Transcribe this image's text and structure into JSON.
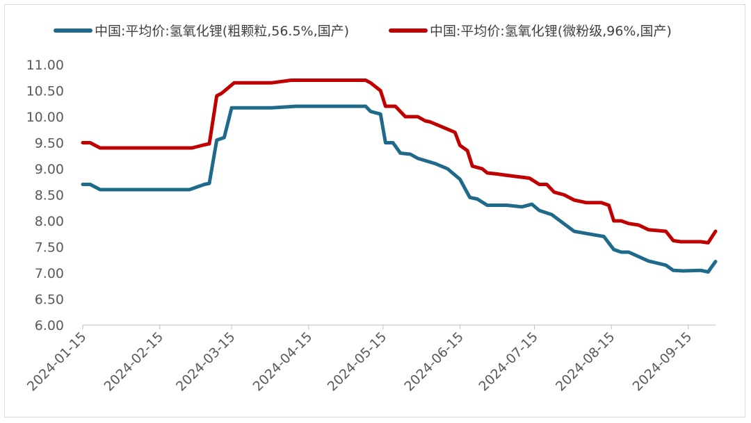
{
  "chart_data": {
    "type": "line",
    "xlabel": "",
    "ylabel": "",
    "ylim": [
      6.0,
      11.0
    ],
    "y_ticks": [
      "6.00",
      "6.50",
      "7.00",
      "7.50",
      "8.00",
      "8.50",
      "9.00",
      "9.50",
      "10.00",
      "10.50",
      "11.00"
    ],
    "x_ticks": [
      "2024-01-15",
      "2024-02-15",
      "2024-03-15",
      "2024-04-15",
      "2024-05-15",
      "2024-06-15",
      "2024-07-15",
      "2024-08-15",
      "2024-09-15"
    ],
    "x_range": [
      "2024-01-15",
      "2024-09-26"
    ],
    "grid": false,
    "legend_position": "top",
    "series": [
      {
        "name": "中国:平均价:氢氧化锂(粗颗粒,56.5%,国产)",
        "color": "#1f6a8a",
        "points": [
          [
            "2024-01-15",
            8.7
          ],
          [
            "2024-01-18",
            8.7
          ],
          [
            "2024-01-22",
            8.6
          ],
          [
            "2024-02-27",
            8.6
          ],
          [
            "2024-03-04",
            8.7
          ],
          [
            "2024-03-06",
            8.72
          ],
          [
            "2024-03-09",
            9.55
          ],
          [
            "2024-03-12",
            9.6
          ],
          [
            "2024-03-15",
            10.17
          ],
          [
            "2024-03-31",
            10.17
          ],
          [
            "2024-04-10",
            10.2
          ],
          [
            "2024-05-08",
            10.2
          ],
          [
            "2024-05-10",
            10.1
          ],
          [
            "2024-05-14",
            10.05
          ],
          [
            "2024-05-16",
            9.5
          ],
          [
            "2024-05-19",
            9.5
          ],
          [
            "2024-05-22",
            9.3
          ],
          [
            "2024-05-26",
            9.28
          ],
          [
            "2024-05-29",
            9.2
          ],
          [
            "2024-06-05",
            9.1
          ],
          [
            "2024-06-10",
            9.0
          ],
          [
            "2024-06-15",
            8.8
          ],
          [
            "2024-06-19",
            8.45
          ],
          [
            "2024-06-22",
            8.42
          ],
          [
            "2024-06-26",
            8.3
          ],
          [
            "2024-07-04",
            8.3
          ],
          [
            "2024-07-10",
            8.27
          ],
          [
            "2024-07-14",
            8.32
          ],
          [
            "2024-07-17",
            8.2
          ],
          [
            "2024-07-22",
            8.12
          ],
          [
            "2024-07-31",
            7.8
          ],
          [
            "2024-08-06",
            7.75
          ],
          [
            "2024-08-12",
            7.7
          ],
          [
            "2024-08-16",
            7.45
          ],
          [
            "2024-08-19",
            7.4
          ],
          [
            "2024-08-22",
            7.4
          ],
          [
            "2024-08-30",
            7.23
          ],
          [
            "2024-09-06",
            7.15
          ],
          [
            "2024-09-09",
            7.05
          ],
          [
            "2024-09-13",
            7.04
          ],
          [
            "2024-09-20",
            7.05
          ],
          [
            "2024-09-23",
            7.02
          ],
          [
            "2024-09-26",
            7.22
          ]
        ]
      },
      {
        "name": "中国:平均价:氢氧化锂(微粉级,96%,国产)",
        "color": "#c00000",
        "points": [
          [
            "2024-01-15",
            9.5
          ],
          [
            "2024-01-18",
            9.5
          ],
          [
            "2024-01-22",
            9.4
          ],
          [
            "2024-02-28",
            9.4
          ],
          [
            "2024-03-04",
            9.46
          ],
          [
            "2024-03-06",
            9.48
          ],
          [
            "2024-03-09",
            10.4
          ],
          [
            "2024-03-11",
            10.45
          ],
          [
            "2024-03-16",
            10.65
          ],
          [
            "2024-03-31",
            10.65
          ],
          [
            "2024-04-08",
            10.7
          ],
          [
            "2024-05-08",
            10.7
          ],
          [
            "2024-05-10",
            10.65
          ],
          [
            "2024-05-14",
            10.5
          ],
          [
            "2024-05-16",
            10.2
          ],
          [
            "2024-05-20",
            10.2
          ],
          [
            "2024-05-24",
            10.0
          ],
          [
            "2024-05-29",
            10.0
          ],
          [
            "2024-06-01",
            9.92
          ],
          [
            "2024-06-03",
            9.9
          ],
          [
            "2024-06-13",
            9.7
          ],
          [
            "2024-06-15",
            9.45
          ],
          [
            "2024-06-18",
            9.35
          ],
          [
            "2024-06-20",
            9.05
          ],
          [
            "2024-06-24",
            9.0
          ],
          [
            "2024-06-26",
            8.92
          ],
          [
            "2024-06-30",
            8.9
          ],
          [
            "2024-07-03",
            8.88
          ],
          [
            "2024-07-13",
            8.82
          ],
          [
            "2024-07-17",
            8.7
          ],
          [
            "2024-07-20",
            8.7
          ],
          [
            "2024-07-23",
            8.55
          ],
          [
            "2024-07-27",
            8.5
          ],
          [
            "2024-07-31",
            8.4
          ],
          [
            "2024-08-05",
            8.35
          ],
          [
            "2024-08-11",
            8.35
          ],
          [
            "2024-08-14",
            8.3
          ],
          [
            "2024-08-16",
            8.0
          ],
          [
            "2024-08-19",
            8.0
          ],
          [
            "2024-08-22",
            7.95
          ],
          [
            "2024-08-26",
            7.92
          ],
          [
            "2024-08-30",
            7.83
          ],
          [
            "2024-09-06",
            7.8
          ],
          [
            "2024-09-09",
            7.62
          ],
          [
            "2024-09-12",
            7.6
          ],
          [
            "2024-09-20",
            7.6
          ],
          [
            "2024-09-23",
            7.58
          ],
          [
            "2024-09-26",
            7.8
          ]
        ]
      }
    ]
  }
}
